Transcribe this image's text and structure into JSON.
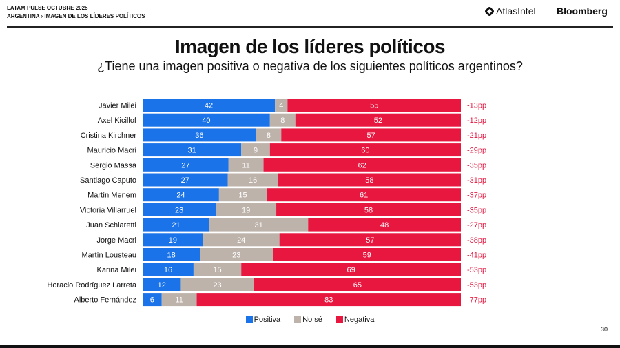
{
  "header": {
    "line1": "LATAM PULSE OCTUBRE 2025",
    "line2": "ARGENTINA › IMAGEN DE LOS LÍDERES POLÍTICOS",
    "brand1": "AtlasIntel",
    "brand2": "Bloomberg"
  },
  "page_number": "30",
  "chart_data": {
    "type": "bar",
    "orientation": "horizontal",
    "stacked": true,
    "title": "Imagen de los líderes políticos",
    "subtitle": "¿Tiene una imagen positiva o negativa de los siguientes políticos argentinos?",
    "categories": [
      "Javier Milei",
      "Axel Kicillof",
      "Cristina Kirchner",
      "Mauricio Macri",
      "Sergio Massa",
      "Santiago Caputo",
      "Martín Menem",
      "Victoria Villarruel",
      "Juan Schiaretti",
      "Jorge Macri",
      "Martín Lousteau",
      "Karina Milei",
      "Horacio Rodríguez Larreta",
      "Alberto Fernández"
    ],
    "series": [
      {
        "name": "Positiva",
        "color": "#1a73e8",
        "values": [
          42,
          40,
          36,
          31,
          27,
          27,
          24,
          23,
          21,
          19,
          18,
          16,
          12,
          6
        ]
      },
      {
        "name": "No sé",
        "color": "#bdb3ab",
        "values": [
          4,
          8,
          8,
          9,
          11,
          16,
          15,
          19,
          31,
          24,
          23,
          15,
          23,
          11
        ]
      },
      {
        "name": "Negativa",
        "color": "#e8173f",
        "values": [
          55,
          52,
          57,
          60,
          62,
          58,
          61,
          58,
          48,
          57,
          59,
          69,
          65,
          83
        ]
      }
    ],
    "net_labels": [
      "-13pp",
      "-12pp",
      "-21pp",
      "-29pp",
      "-35pp",
      "-31pp",
      "-37pp",
      "-35pp",
      "-27pp",
      "-38pp",
      "-41pp",
      "-53pp",
      "-53pp",
      "-77pp"
    ],
    "net_color": "#e8173f",
    "legend": "bottom-center",
    "grid": false
  }
}
